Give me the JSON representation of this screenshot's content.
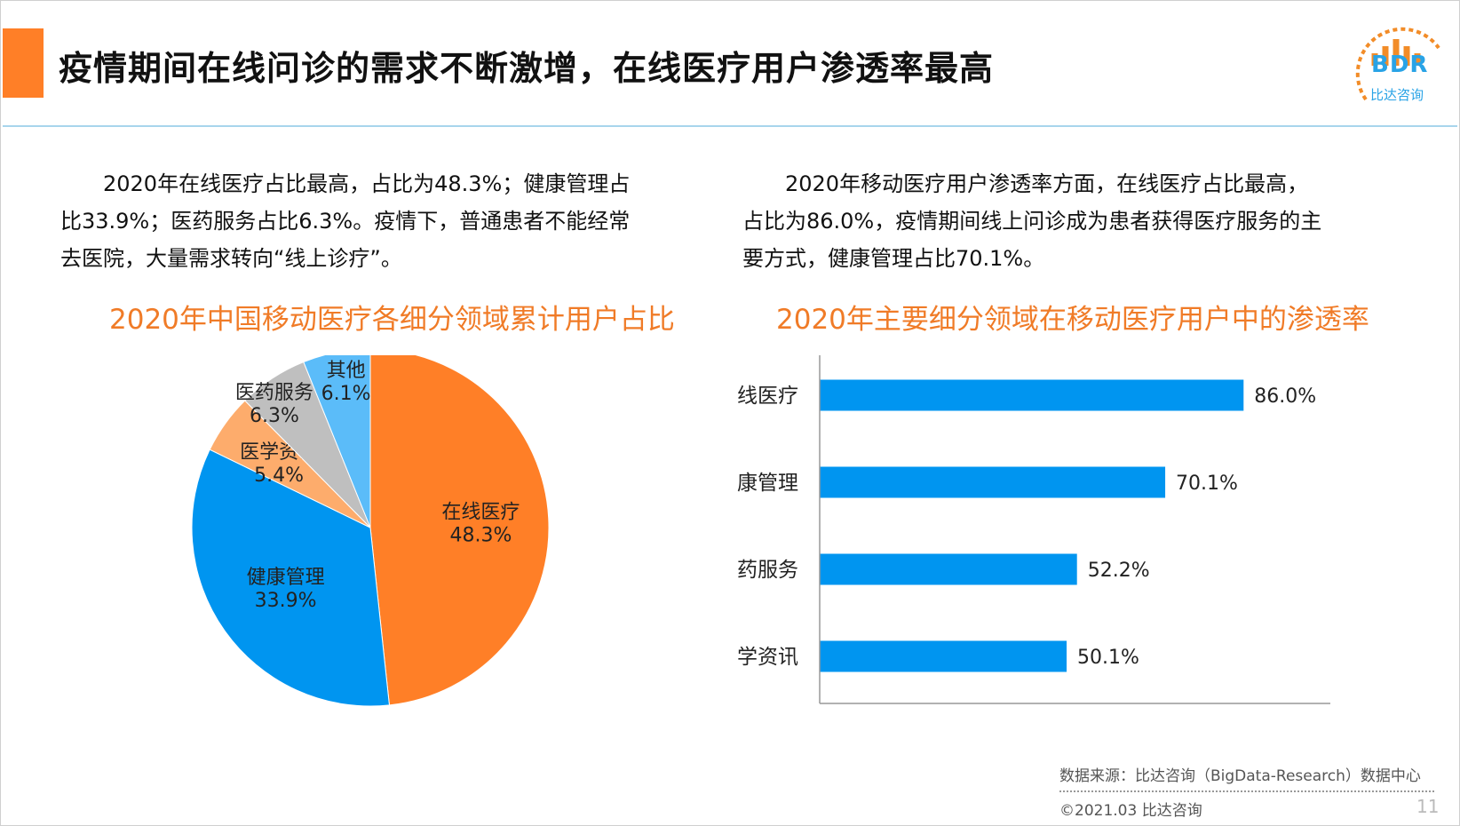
{
  "header": {
    "title": "疫情期间在线问诊的需求不断激增，在线医疗用户渗透率最高",
    "logo_text": "BDR",
    "logo_cn": "比达咨询"
  },
  "left_paragraph": "　　2020年在线医疗占比最高，占比为48.3%；健康管理占\n比33.9%；医药服务占比6.3%。疫情下，普通患者不能经常\n去医院，大量需求转向“线上诊疗”。",
  "right_paragraph": "　　2020年移动医疗用户渗透率方面，在线医疗占比最高，\n占比为86.0%，疫情期间线上问诊成为患者获得医疗服务的主\n要方式，健康管理占比70.1%。",
  "chart_data": [
    {
      "type": "pie",
      "title": "2020年中国移动医疗各细分领域累计用户占比",
      "slices": [
        {
          "label": "在线医疗",
          "value": 48.3,
          "value_label": "48.3%",
          "color": "#ff7f27"
        },
        {
          "label": "健康管理",
          "value": 33.9,
          "value_label": "33.9%",
          "color": "#0095f0"
        },
        {
          "label": "医学资讯",
          "value": 5.4,
          "value_label": "5.4%",
          "color": "#fdac6c"
        },
        {
          "label": "医药服务",
          "value": 6.3,
          "value_label": "6.3%",
          "color": "#bfbfbf"
        },
        {
          "label": "其他",
          "value": 6.1,
          "value_label": "6.1%",
          "color": "#5bbcf9"
        }
      ]
    },
    {
      "type": "bar",
      "orientation": "horizontal",
      "title": "2020年主要细分领域在移动医疗用户中的渗透率",
      "categories": [
        "在线医疗",
        "健康管理",
        "医药服务",
        "医学资讯"
      ],
      "values": [
        86.0,
        70.1,
        52.2,
        50.1
      ],
      "value_labels": [
        "86.0%",
        "70.1%",
        "52.2%",
        "50.1%"
      ],
      "color": "#0095f0",
      "xlim": [
        0,
        100
      ]
    }
  ],
  "footer": {
    "source": "数据来源：比达咨询（BigData-Research）数据中心",
    "copyright": "©2021.03 比达咨询",
    "page": "11"
  }
}
